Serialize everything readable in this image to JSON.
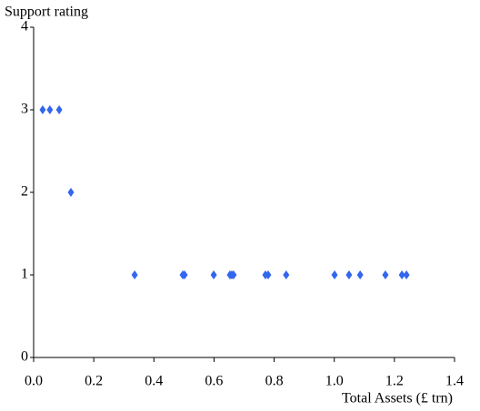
{
  "chart_data": {
    "type": "scatter",
    "y_label": "Support rating",
    "x_label": "Total Assets (£ trn)",
    "color": "#3366ee",
    "grid": false,
    "x": [
      0.03,
      0.054,
      0.085,
      0.124,
      0.336,
      0.496,
      0.502,
      0.599,
      0.653,
      0.659,
      0.665,
      0.771,
      0.78,
      0.84,
      1.001,
      1.049,
      1.086,
      1.17,
      1.225,
      1.24
    ],
    "values": [
      3,
      3,
      3,
      2,
      1,
      1,
      1,
      1,
      1,
      1,
      1,
      1,
      1,
      1,
      1,
      1,
      1,
      1,
      1,
      1
    ],
    "xlim": [
      0,
      1.4
    ],
    "ylim": [
      0,
      4
    ],
    "xticks": [
      {
        "value": 0,
        "label": "0.0"
      },
      0.2,
      0.4,
      0.6,
      0.8,
      {
        "value": 1,
        "label": "1.0"
      },
      1.2,
      1.4
    ],
    "yticks": [
      0,
      1,
      2,
      3,
      4
    ]
  }
}
